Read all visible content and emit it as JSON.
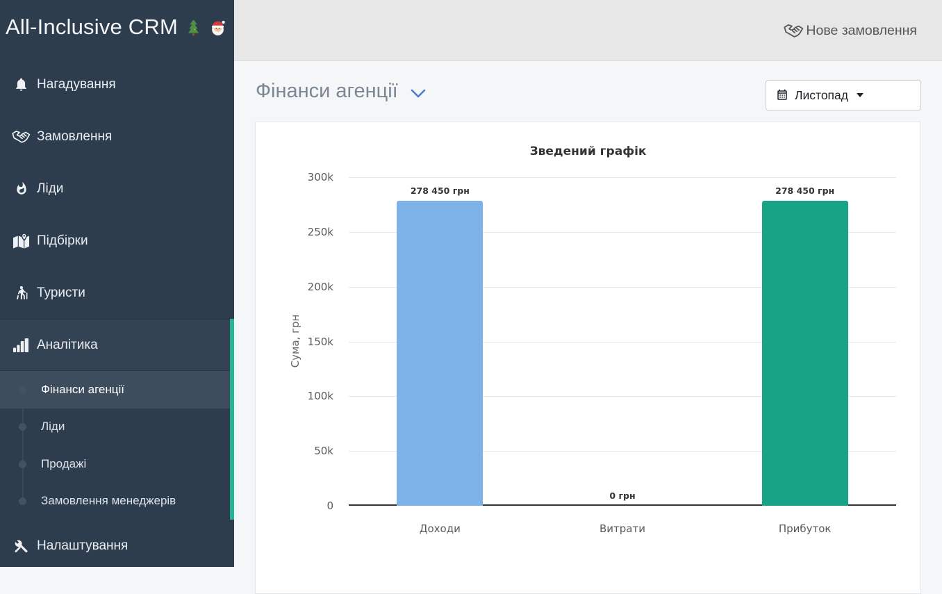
{
  "sidebar": {
    "logo_text": "All-Inclusive CRM",
    "logo_icons": [
      "christmas-tree",
      "santa"
    ],
    "accent_color": "#26b695",
    "items": [
      {
        "label": "Нагадування",
        "icon": "bell"
      },
      {
        "label": "Замовлення",
        "icon": "handshake"
      },
      {
        "label": "Ліди",
        "icon": "fire"
      },
      {
        "label": "Підбірки",
        "icon": "map-marked"
      },
      {
        "label": "Туристи",
        "icon": "hiker"
      },
      {
        "label": "Аналітика",
        "icon": "bar-chart",
        "active": true
      },
      {
        "label": "Налаштування",
        "icon": "tools"
      }
    ],
    "analytics_submenu": [
      {
        "label": "Фінанси агенції",
        "active": true
      },
      {
        "label": "Ліди",
        "active": false
      },
      {
        "label": "Продажі",
        "active": false
      },
      {
        "label": "Замовлення менеджерів",
        "active": false
      }
    ]
  },
  "topbar": {
    "new_order_label": "Нове замовлення",
    "new_order_icon": "handshake"
  },
  "page": {
    "title": "Фінанси агенції"
  },
  "period_selector": {
    "value": "Листопад",
    "icon": "calendar"
  },
  "chart_data": {
    "type": "bar",
    "title": "Зведений графік",
    "ylabel": "Сума, грн",
    "xlabel": "",
    "categories": [
      "Доходи",
      "Витрати",
      "Прибуток"
    ],
    "values": [
      278450,
      0,
      278450
    ],
    "value_labels": [
      "278 450 грн",
      "0 грн",
      "278 450 грн"
    ],
    "bar_colors": [
      "#7cb2e8",
      null,
      "#19a386"
    ],
    "ylim": [
      0,
      300000
    ],
    "ytick_labels": [
      "0",
      "50k",
      "100k",
      "150k",
      "200k",
      "250k",
      "300k"
    ],
    "grid": true,
    "legend": false
  }
}
